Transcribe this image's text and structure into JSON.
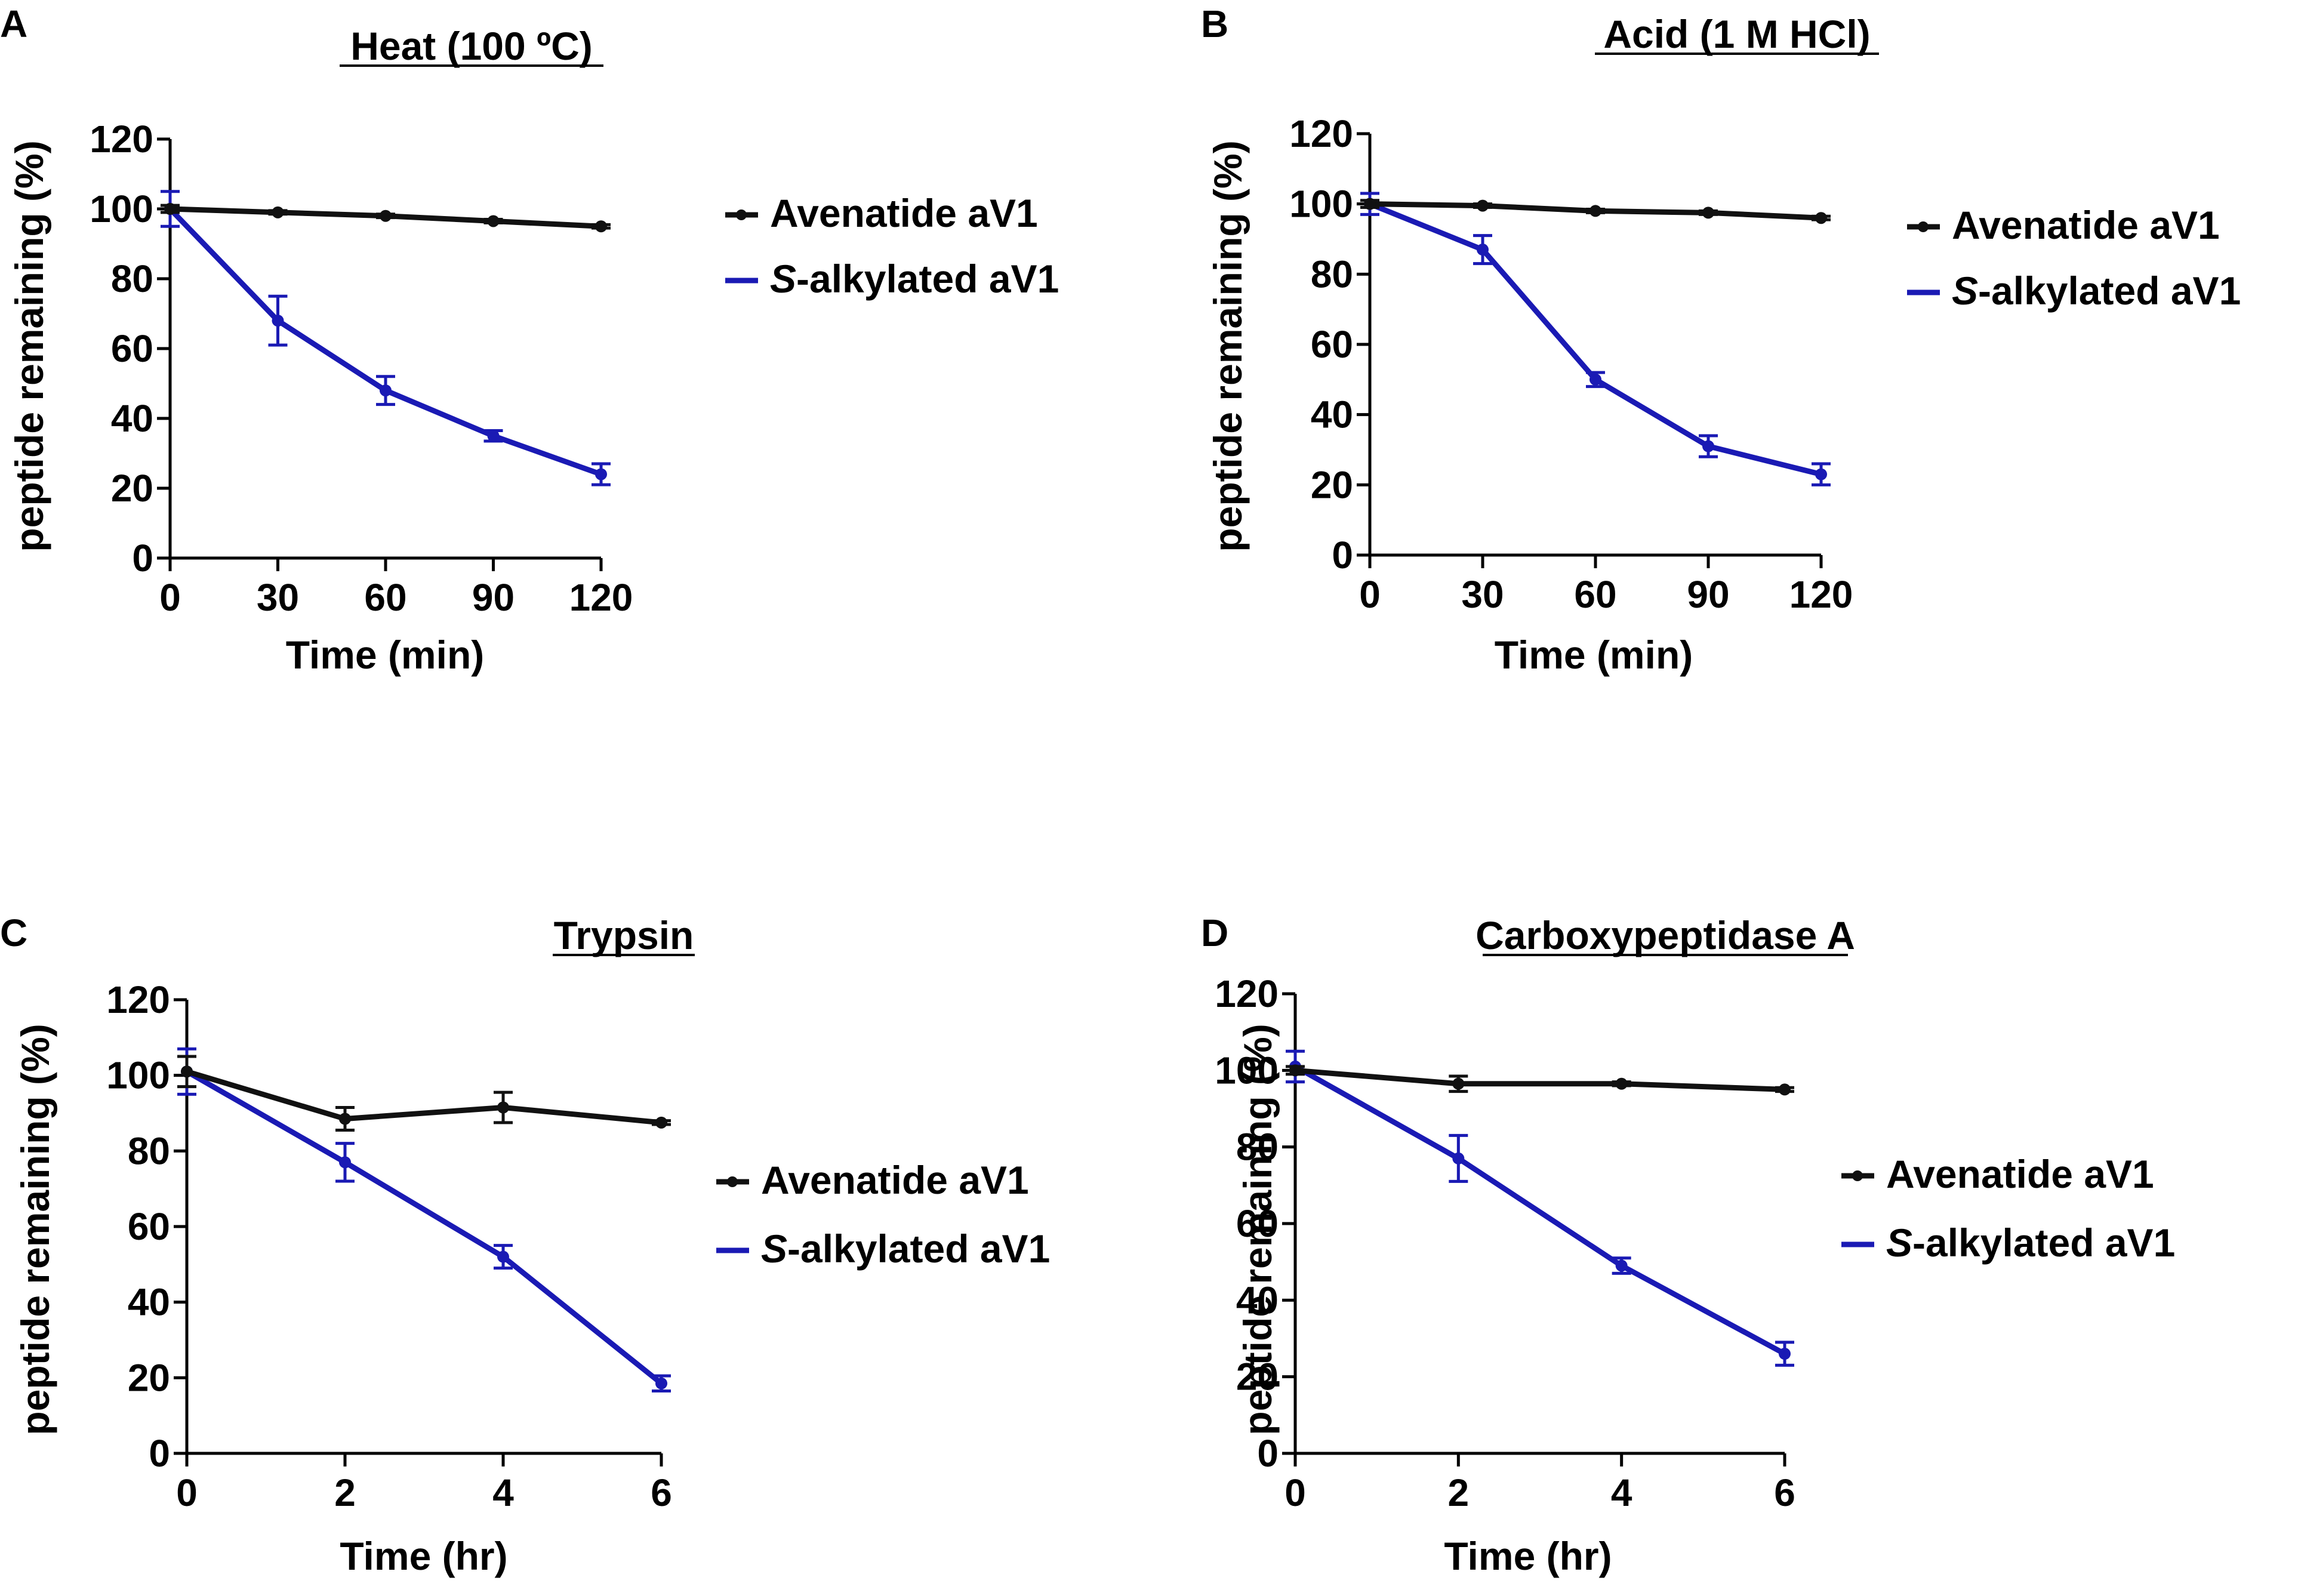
{
  "legend_labels": {
    "s1": "Avenatide aV1",
    "s2_prefix": "S",
    "s2_rest": "-alkylated aV1"
  },
  "colors": {
    "s1": "#111111",
    "s2": "#1a1ab4",
    "axis": "#000000"
  },
  "chart_data": [
    {
      "panel": "A",
      "type": "line",
      "title": "Heat (100 ºC)",
      "xlabel": "Time (min)",
      "ylabel": "peptide remaining (%)",
      "x": [
        0,
        30,
        60,
        90,
        120
      ],
      "xticks": [
        0,
        30,
        60,
        90,
        120
      ],
      "xlim": [
        0,
        120
      ],
      "ylim": [
        0,
        120
      ],
      "yticks": [
        0,
        20,
        40,
        60,
        80,
        100,
        120
      ],
      "legend_position": "right",
      "series": [
        {
          "name": "Avenatide aV1",
          "values": [
            100,
            99,
            98,
            96.5,
            95
          ],
          "errors": [
            1,
            0.5,
            0.5,
            0.5,
            0.5
          ]
        },
        {
          "name": "S-alkylated aV1",
          "values": [
            100,
            68,
            48,
            35,
            24
          ],
          "errors": [
            5,
            7,
            4,
            1.5,
            3
          ]
        }
      ]
    },
    {
      "panel": "B",
      "type": "line",
      "title": "Acid (1 M HCl)",
      "xlabel": "Time (min)",
      "ylabel": "peptide remaining (%)",
      "x": [
        0,
        30,
        60,
        90,
        120
      ],
      "xticks": [
        0,
        30,
        60,
        90,
        120
      ],
      "xlim": [
        0,
        120
      ],
      "ylim": [
        0,
        120
      ],
      "yticks": [
        0,
        20,
        40,
        60,
        80,
        100,
        120
      ],
      "legend_position": "right",
      "series": [
        {
          "name": "Avenatide aV1",
          "values": [
            100,
            99.5,
            98,
            97.5,
            96
          ],
          "errors": [
            1,
            0.5,
            0.5,
            0.5,
            0.5
          ]
        },
        {
          "name": "S-alkylated aV1",
          "values": [
            100,
            87,
            50,
            31,
            23
          ],
          "errors": [
            3,
            4,
            2,
            3,
            3
          ]
        }
      ]
    },
    {
      "panel": "C",
      "type": "line",
      "title": "Trypsin",
      "xlabel": "Time (hr)",
      "ylabel": "peptide remaining (%)",
      "x": [
        0,
        2,
        4,
        6
      ],
      "xticks": [
        0,
        2,
        4,
        6
      ],
      "xlim": [
        0,
        6
      ],
      "ylim": [
        0,
        120
      ],
      "yticks": [
        0,
        20,
        40,
        60,
        80,
        100,
        120
      ],
      "legend_position": "right",
      "series": [
        {
          "name": "Avenatide aV1",
          "values": [
            101,
            88.5,
            91.5,
            87.5
          ],
          "errors": [
            4,
            3,
            4,
            0.5
          ]
        },
        {
          "name": "S-alkylated aV1",
          "values": [
            101,
            77,
            52,
            18.5
          ],
          "errors": [
            6,
            5,
            3,
            2
          ]
        }
      ]
    },
    {
      "panel": "D",
      "type": "line",
      "title": "Carboxypeptidase A",
      "xlabel": "Time (hr)",
      "ylabel": "peptide remaining (%)",
      "x": [
        0,
        2,
        4,
        6
      ],
      "xticks": [
        0,
        2,
        4,
        6
      ],
      "xlim": [
        0,
        6
      ],
      "ylim": [
        0,
        120
      ],
      "yticks": [
        0,
        20,
        40,
        60,
        80,
        100,
        120
      ],
      "legend_position": "right",
      "series": [
        {
          "name": "Avenatide aV1",
          "values": [
            100,
            96.5,
            96.5,
            95
          ],
          "errors": [
            1,
            2,
            0.5,
            0.5
          ]
        },
        {
          "name": "S-alkylated aV1",
          "values": [
            101,
            77,
            49,
            26
          ],
          "errors": [
            4,
            6,
            2,
            3
          ]
        }
      ]
    }
  ]
}
